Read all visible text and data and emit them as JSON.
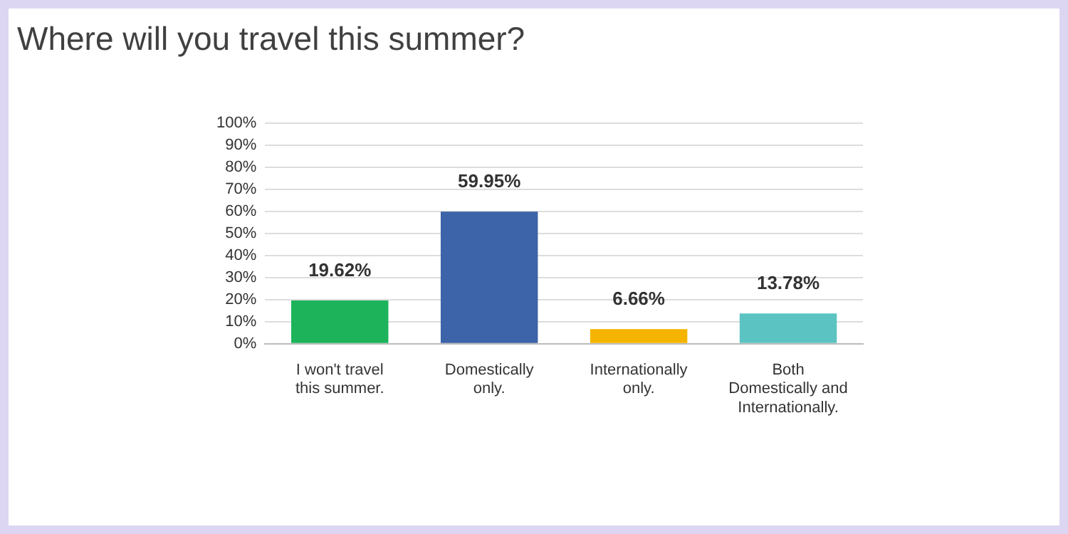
{
  "chart_data": {
    "type": "bar",
    "title": "Where will you travel this summer?",
    "categories": [
      "I won't travel this summer.",
      "Domestically only.",
      "Internationally only.",
      "Both Domestically and Internationally."
    ],
    "values": [
      19.62,
      59.95,
      6.66,
      13.78
    ],
    "colors": [
      "#1db35b",
      "#3d63a8",
      "#f5b400",
      "#5bc3c1"
    ],
    "value_labels": [
      "19.62%",
      "59.95%",
      "6.66%",
      "13.78%"
    ],
    "ylim": [
      0,
      100
    ],
    "yticks": [
      {
        "value": 0,
        "label": "0%"
      },
      {
        "value": 10,
        "label": "10%"
      },
      {
        "value": 20,
        "label": "20%"
      },
      {
        "value": 30,
        "label": "30%"
      },
      {
        "value": 40,
        "label": "40%"
      },
      {
        "value": 50,
        "label": "50%"
      },
      {
        "value": 60,
        "label": "60%"
      },
      {
        "value": 70,
        "label": "70%"
      },
      {
        "value": 80,
        "label": "80%"
      },
      {
        "value": 90,
        "label": "90%"
      },
      {
        "value": 100,
        "label": "100%"
      }
    ],
    "grid": "y",
    "legend": false
  }
}
